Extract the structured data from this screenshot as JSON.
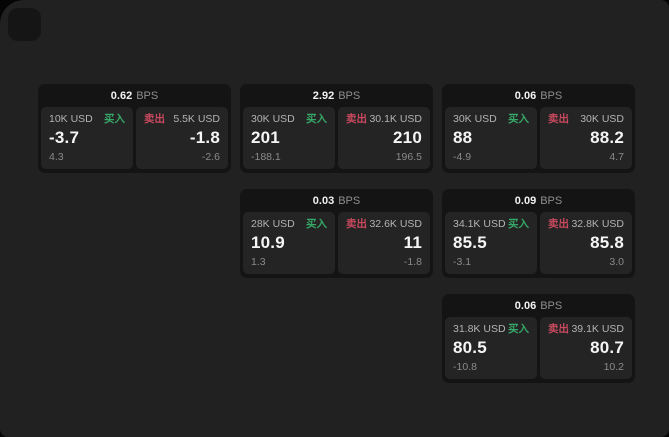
{
  "labels": {
    "bps": "BPS",
    "buy": "买入",
    "sell": "卖出"
  },
  "colors": {
    "backdrop": "#050505",
    "surface": "#212121",
    "card": "#141414",
    "panel": "#242424",
    "buy_green": "#36a867",
    "sell_red": "#c8495e",
    "value_white": "#f5f5f5",
    "label_gray": "#b3b3b3",
    "sub_gray": "#8a8a8a"
  },
  "cards": [
    {
      "bps": "0.62",
      "buy": {
        "size": "10K USD",
        "value": "-3.7",
        "sub": "4.3"
      },
      "sell": {
        "size": "5.5K USD",
        "value": "-1.8",
        "sub": "-2.6"
      }
    },
    {
      "bps": "2.92",
      "buy": {
        "size": "30K USD",
        "value": "201",
        "sub": "-188.1"
      },
      "sell": {
        "size": "30.1K USD",
        "value": "210",
        "sub": "196.5"
      }
    },
    {
      "bps": "0.06",
      "buy": {
        "size": "30K USD",
        "value": "88",
        "sub": "-4.9"
      },
      "sell": {
        "size": "30K USD",
        "value": "88.2",
        "sub": "4.7"
      }
    },
    {
      "bps": "0.03",
      "buy": {
        "size": "28K USD",
        "value": "10.9",
        "sub": "1.3"
      },
      "sell": {
        "size": "32.6K USD",
        "value": "11",
        "sub": "-1.8"
      }
    },
    {
      "bps": "0.09",
      "buy": {
        "size": "34.1K USD",
        "value": "85.5",
        "sub": "-3.1"
      },
      "sell": {
        "size": "32.8K USD",
        "value": "85.8",
        "sub": "3.0"
      }
    },
    {
      "bps": "0.06",
      "buy": {
        "size": "31.8K USD",
        "value": "80.5",
        "sub": "-10.8"
      },
      "sell": {
        "size": "39.1K USD",
        "value": "80.7",
        "sub": "10.2"
      }
    }
  ]
}
